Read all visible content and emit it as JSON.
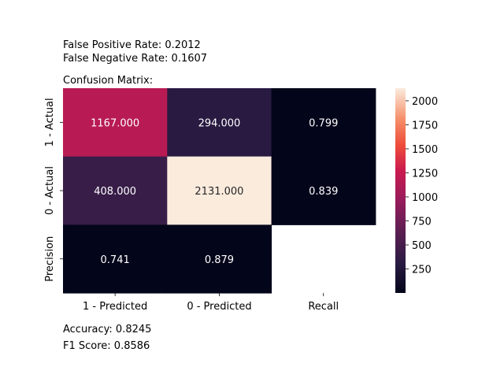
{
  "header": {
    "fpr_text": "False Positive Rate: 0.2012",
    "fnr_text": "False Negative Rate: 0.1607",
    "matrix_title": "Confusion Matrix:"
  },
  "footer": {
    "accuracy_text": "Accuracy: 0.8245",
    "f1_text": "F1 Score: 0.8586"
  },
  "chart_data": {
    "type": "heatmap",
    "title": "Confusion Matrix:",
    "row_labels": [
      "1 - Actual",
      "0 - Actual",
      "Precision"
    ],
    "col_labels": [
      "1 - Predicted",
      "0 - Predicted",
      "Recall"
    ],
    "values": [
      [
        1167.0,
        294.0,
        0.799
      ],
      [
        408.0,
        2131.0,
        0.839
      ],
      [
        0.741,
        0.879,
        null
      ]
    ],
    "cell_text": [
      [
        "1167.000",
        "294.000",
        "0.799"
      ],
      [
        "408.000",
        "2131.000",
        "0.839"
      ],
      [
        "0.741",
        "0.879",
        ""
      ]
    ],
    "colorbar": {
      "ticks": [
        250,
        500,
        750,
        1000,
        1250,
        1500,
        1750,
        2000
      ],
      "tick_labels": [
        "250",
        "500",
        "750",
        "1000",
        "1250",
        "1500",
        "1750",
        "2000"
      ],
      "range": [
        0,
        2131
      ],
      "colormap": "rocket"
    }
  }
}
